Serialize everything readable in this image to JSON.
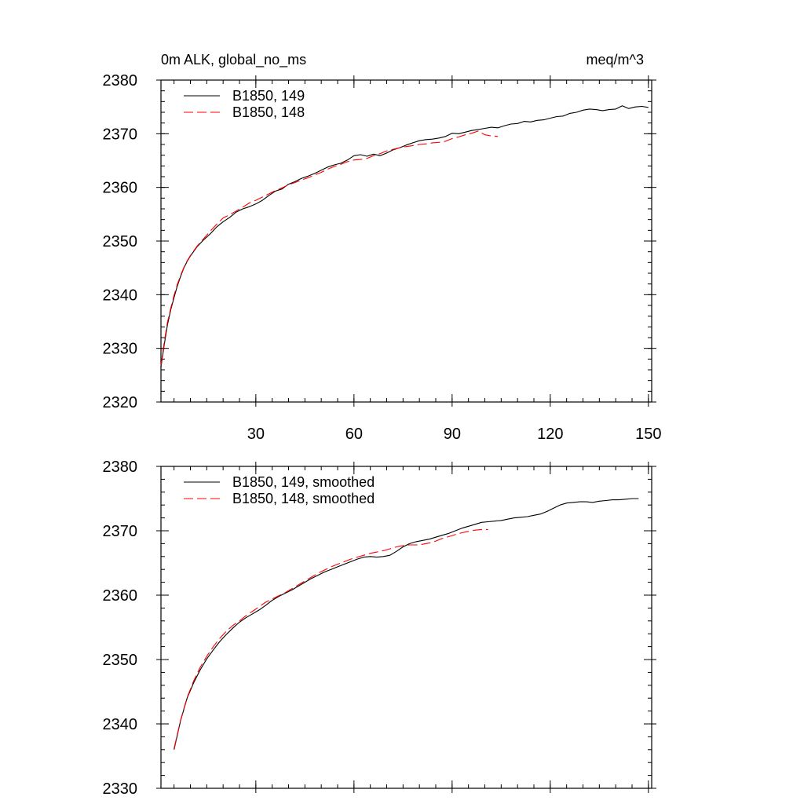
{
  "colors": {
    "run_149": "#000000",
    "run_148": "#ff0000",
    "axes": "#000000"
  },
  "chart_data": [
    {
      "type": "line",
      "title_left": "0m ALK, global_no_ms",
      "title_right": "meq/m^3",
      "xlim": [
        1,
        151
      ],
      "ylim": [
        2320,
        2380
      ],
      "x_ticks": [
        30,
        60,
        90,
        120,
        150
      ],
      "y_ticks": [
        2320,
        2330,
        2340,
        2350,
        2360,
        2370,
        2380
      ],
      "x_tick_labels": [
        "30",
        "60",
        "90",
        "120",
        "150"
      ],
      "y_tick_labels": [
        "2320",
        "2330",
        "2340",
        "2350",
        "2360",
        "2370",
        "2380"
      ],
      "legend_position": "top-left",
      "series": [
        {
          "name": "B1850, 149",
          "style": "solid",
          "x": [
            1,
            2,
            3,
            4,
            5,
            6,
            7,
            8,
            9,
            10,
            12,
            14,
            16,
            18,
            20,
            22,
            24,
            26,
            28,
            30,
            32,
            34,
            36,
            38,
            40,
            42,
            44,
            46,
            48,
            50,
            52,
            54,
            56,
            58,
            60,
            62,
            64,
            66,
            68,
            70,
            72,
            74,
            76,
            78,
            80,
            82,
            84,
            86,
            88,
            90,
            92,
            94,
            96,
            98,
            100,
            102,
            104,
            106,
            108,
            110,
            112,
            114,
            116,
            118,
            120,
            122,
            124,
            126,
            128,
            130,
            132,
            134,
            136,
            138,
            140,
            142,
            144,
            146,
            148,
            150
          ],
          "values": [
            2326.5,
            2330.7,
            2334.4,
            2337.2,
            2339.5,
            2341.6,
            2343.4,
            2345,
            2346.2,
            2347.2,
            2348.9,
            2350.2,
            2351.3,
            2352.6,
            2353.6,
            2354.4,
            2355.4,
            2356,
            2356.4,
            2356.9,
            2357.6,
            2358.5,
            2359.3,
            2359.7,
            2360.6,
            2361.1,
            2361.7,
            2362.1,
            2362.6,
            2363.2,
            2363.8,
            2364.2,
            2364.5,
            2365.1,
            2365.9,
            2366.1,
            2365.8,
            2366.2,
            2365.9,
            2366.4,
            2367,
            2367.4,
            2367.9,
            2368.3,
            2368.7,
            2368.9,
            2369,
            2369.2,
            2369.5,
            2370.1,
            2370,
            2370.3,
            2370.6,
            2370.8,
            2371,
            2371.2,
            2371.1,
            2371.5,
            2371.8,
            2371.9,
            2372.3,
            2372.2,
            2372.5,
            2372.6,
            2372.9,
            2373.2,
            2373.3,
            2373.8,
            2374,
            2374.4,
            2374.6,
            2374.5,
            2374.3,
            2374.5,
            2374.6,
            2375.2,
            2374.7,
            2375,
            2375.1,
            2374.9
          ]
        },
        {
          "name": "B1850, 148",
          "style": "dashed",
          "x": [
            1,
            2,
            3,
            4,
            5,
            6,
            7,
            8,
            9,
            10,
            12,
            14,
            16,
            18,
            20,
            22,
            24,
            26,
            28,
            30,
            32,
            34,
            36,
            38,
            40,
            42,
            44,
            46,
            48,
            50,
            52,
            54,
            56,
            58,
            60,
            62,
            64,
            66,
            68,
            70,
            72,
            74,
            76,
            78,
            80,
            82,
            84,
            86,
            88,
            90,
            92,
            94,
            96,
            98,
            100,
            102,
            104
          ],
          "values": [
            2326.8,
            2331.2,
            2334.9,
            2337.5,
            2339.9,
            2341.9,
            2343.6,
            2345.1,
            2346.3,
            2347.3,
            2349,
            2350.4,
            2351.8,
            2353.1,
            2354.3,
            2354.9,
            2355.6,
            2356.3,
            2357.1,
            2357.6,
            2358.2,
            2358.8,
            2359.4,
            2359.9,
            2360.5,
            2360.9,
            2361.4,
            2361.8,
            2362.3,
            2362.8,
            2363.4,
            2363.9,
            2364.3,
            2364.8,
            2365.1,
            2365.2,
            2365.4,
            2365.9,
            2366.3,
            2366.8,
            2367.1,
            2367.4,
            2367.6,
            2367.8,
            2368,
            2368.1,
            2368.3,
            2368.4,
            2368.6,
            2369.1,
            2369.4,
            2369.8,
            2370.1,
            2370.5,
            2369.8,
            2369.6,
            2369.5
          ]
        }
      ]
    },
    {
      "type": "line",
      "xlim": [
        1,
        151
      ],
      "ylim": [
        2330,
        2380
      ],
      "x_ticks": [
        30,
        60,
        90,
        120,
        150
      ],
      "y_ticks": [
        2330,
        2340,
        2350,
        2360,
        2370,
        2380
      ],
      "y_tick_labels": [
        "2330",
        "2340",
        "2350",
        "2360",
        "2370",
        "2380"
      ],
      "legend_position": "top-left",
      "series": [
        {
          "name": "B1850, 149, smoothed",
          "style": "solid",
          "x": [
            5,
            7,
            9,
            11,
            13,
            15,
            17,
            19,
            21,
            23,
            25,
            27,
            29,
            31,
            33,
            35,
            37,
            39,
            41,
            43,
            45,
            47,
            49,
            51,
            53,
            55,
            57,
            59,
            61,
            63,
            65,
            67,
            69,
            71,
            73,
            75,
            77,
            79,
            81,
            83,
            85,
            87,
            89,
            91,
            93,
            95,
            97,
            99,
            101,
            103,
            105,
            107,
            109,
            111,
            113,
            115,
            117,
            119,
            121,
            123,
            125,
            127,
            129,
            131,
            133,
            135,
            137,
            139,
            141,
            143,
            145,
            147
          ],
          "values": [
            2336,
            2340.5,
            2344,
            2346.4,
            2348.4,
            2350.1,
            2351.5,
            2352.8,
            2353.9,
            2354.9,
            2355.8,
            2356.5,
            2357.1,
            2357.7,
            2358.4,
            2359.2,
            2359.8,
            2360.3,
            2360.8,
            2361.4,
            2362,
            2362.6,
            2363.1,
            2363.6,
            2364,
            2364.4,
            2364.8,
            2365.2,
            2365.6,
            2365.9,
            2366,
            2365.9,
            2366,
            2366.2,
            2366.8,
            2367.5,
            2368,
            2368.3,
            2368.5,
            2368.7,
            2369,
            2369.3,
            2369.6,
            2370,
            2370.4,
            2370.7,
            2371,
            2371.3,
            2371.4,
            2371.5,
            2371.6,
            2371.8,
            2372,
            2372.1,
            2372.2,
            2372.4,
            2372.6,
            2373,
            2373.5,
            2374,
            2374.3,
            2374.4,
            2374.5,
            2374.5,
            2374.4,
            2374.6,
            2374.7,
            2374.8,
            2374.8,
            2374.9,
            2375,
            2375
          ]
        },
        {
          "name": "B1850, 148, smoothed",
          "style": "dashed",
          "x": [
            5,
            7,
            9,
            11,
            13,
            15,
            17,
            19,
            21,
            23,
            25,
            27,
            29,
            31,
            33,
            35,
            37,
            39,
            41,
            43,
            45,
            47,
            49,
            51,
            53,
            55,
            57,
            59,
            61,
            63,
            65,
            67,
            69,
            71,
            73,
            75,
            77,
            79,
            81,
            83,
            85,
            87,
            89,
            91,
            93,
            95,
            97,
            99,
            101
          ],
          "values": [
            2336.2,
            2340.6,
            2344.1,
            2346.7,
            2348.8,
            2350.5,
            2352,
            2353.3,
            2354.4,
            2355.3,
            2356,
            2356.8,
            2357.5,
            2358.2,
            2358.9,
            2359.4,
            2359.9,
            2360.4,
            2361,
            2361.6,
            2362.2,
            2362.8,
            2363.4,
            2363.9,
            2364.4,
            2364.8,
            2365.2,
            2365.6,
            2365.9,
            2366.2,
            2366.5,
            2366.7,
            2366.9,
            2367.2,
            2367.5,
            2367.7,
            2367.8,
            2367.8,
            2367.9,
            2368.1,
            2368.4,
            2368.8,
            2369.1,
            2369.4,
            2369.7,
            2369.9,
            2370.1,
            2370.2,
            2370.2
          ]
        }
      ]
    }
  ]
}
